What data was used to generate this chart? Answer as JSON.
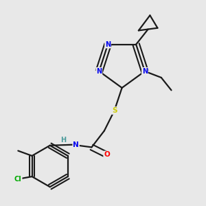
{
  "background_color": "#e8e8e8",
  "bond_color": "#1a1a1a",
  "atom_colors": {
    "N": "#0000ee",
    "S": "#cccc00",
    "O": "#ff0000",
    "Cl": "#00aa00",
    "H": "#4a9a9a",
    "C": "#1a1a1a"
  }
}
